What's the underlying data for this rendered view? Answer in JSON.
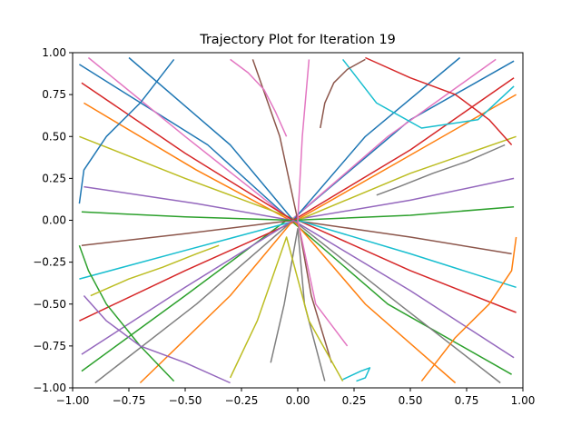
{
  "chart_data": {
    "type": "line",
    "title": "Trajectory Plot for Iteration 19",
    "xlabel": "",
    "ylabel": "",
    "xlim": [
      -1.0,
      1.0
    ],
    "ylim": [
      -1.0,
      1.0
    ],
    "x_ticks": [
      -1.0,
      -0.75,
      -0.5,
      -0.25,
      0.0,
      0.25,
      0.5,
      0.75,
      1.0
    ],
    "x_tick_labels": [
      "−1.00",
      "−0.75",
      "−0.50",
      "−0.25",
      "0.00",
      "0.25",
      "0.50",
      "0.75",
      "1.00"
    ],
    "y_ticks": [
      1.0,
      0.75,
      0.5,
      0.25,
      0.0,
      -0.25,
      -0.5,
      -0.75,
      -1.0
    ],
    "y_tick_labels": [
      "1.00",
      "0.75",
      "0.50",
      "0.25",
      "0.00",
      "−0.25",
      "−0.50",
      "−0.75",
      "−1.00"
    ],
    "grid": false,
    "legend": "none",
    "colors": [
      "#1f77b4",
      "#ff7f0e",
      "#2ca02c",
      "#d62728",
      "#9467bd",
      "#8c564b",
      "#e377c2",
      "#7f7f7f",
      "#bcbd22",
      "#17becf"
    ],
    "series": [
      {
        "x": [
          -0.97,
          -0.4,
          -0.03,
          0.5,
          0.96
        ],
        "y": [
          0.93,
          0.45,
          0.0,
          0.6,
          0.95
        ]
      },
      {
        "x": [
          -0.95,
          -0.45,
          -0.02,
          0.45,
          0.97
        ],
        "y": [
          0.7,
          0.3,
          -0.01,
          0.35,
          0.75
        ]
      },
      {
        "x": [
          -0.96,
          -0.5,
          -0.04,
          0.4,
          0.95
        ],
        "y": [
          -0.9,
          -0.45,
          0.01,
          -0.5,
          -0.92
        ]
      },
      {
        "x": [
          -0.97,
          -0.5,
          0.0,
          0.5,
          0.97
        ],
        "y": [
          -0.6,
          -0.3,
          0.0,
          -0.3,
          -0.55
        ]
      },
      {
        "x": [
          -0.95,
          -0.45,
          -0.03,
          0.5,
          0.96
        ],
        "y": [
          0.2,
          0.1,
          0.0,
          0.12,
          0.25
        ]
      },
      {
        "x": [
          -0.96,
          -0.5,
          -0.02,
          0.5,
          0.95
        ],
        "y": [
          -0.15,
          -0.08,
          0.0,
          -0.1,
          -0.2
        ]
      },
      {
        "x": [
          -0.93,
          -0.5,
          -0.03,
          0.4,
          0.88
        ],
        "y": [
          0.97,
          0.5,
          0.0,
          0.5,
          0.96
        ]
      },
      {
        "x": [
          -0.9,
          -0.45,
          -0.02,
          0.45,
          0.9
        ],
        "y": [
          -0.97,
          -0.5,
          0.0,
          -0.5,
          -0.97
        ]
      },
      {
        "x": [
          -0.97,
          -0.5,
          0.0,
          0.5,
          0.97
        ],
        "y": [
          0.5,
          0.25,
          0.0,
          0.28,
          0.5
        ]
      },
      {
        "x": [
          -0.97,
          -0.5,
          0.0,
          0.5,
          0.97
        ],
        "y": [
          -0.35,
          -0.18,
          0.0,
          -0.2,
          -0.4
        ]
      },
      {
        "x": [
          -0.75,
          -0.3,
          -0.02,
          0.3,
          0.72
        ],
        "y": [
          0.97,
          0.45,
          0.0,
          0.5,
          0.97
        ]
      },
      {
        "x": [
          -0.7,
          -0.3,
          -0.02,
          0.3,
          0.7
        ],
        "y": [
          -0.97,
          -0.45,
          0.0,
          -0.5,
          -0.97
        ]
      },
      {
        "x": [
          -0.96,
          -0.5,
          -0.02,
          0.5,
          0.96
        ],
        "y": [
          0.05,
          0.02,
          0.0,
          0.03,
          0.08
        ]
      },
      {
        "x": [
          -0.96,
          -0.5,
          -0.02,
          0.5,
          0.96
        ],
        "y": [
          0.82,
          0.4,
          0.0,
          0.42,
          0.85
        ]
      },
      {
        "x": [
          -0.96,
          -0.5,
          -0.02,
          0.5,
          0.96
        ],
        "y": [
          -0.8,
          -0.4,
          0.0,
          -0.42,
          -0.82
        ]
      },
      {
        "x": [
          -0.2,
          -0.08,
          0.0,
          0.06,
          0.15
        ],
        "y": [
          0.96,
          0.5,
          0.0,
          -0.45,
          -0.85
        ]
      },
      {
        "x": [
          0.05,
          0.02,
          0.0,
          0.08,
          0.22
        ],
        "y": [
          0.96,
          0.5,
          0.0,
          -0.5,
          -0.75
        ]
      },
      {
        "x": [
          -0.12,
          -0.06,
          0.0,
          0.03,
          0.12
        ],
        "y": [
          -0.85,
          -0.5,
          -0.05,
          -0.5,
          -0.96
        ]
      },
      {
        "x": [
          -0.3,
          -0.18,
          -0.05,
          0.05,
          0.2
        ],
        "y": [
          -0.94,
          -0.6,
          -0.1,
          -0.6,
          -0.96
        ]
      },
      {
        "x": [
          0.2,
          0.35,
          0.55,
          0.8,
          0.96
        ],
        "y": [
          0.96,
          0.7,
          0.55,
          0.6,
          0.8
        ]
      },
      {
        "x": [
          -0.55,
          -0.7,
          -0.85,
          -0.95,
          -0.97
        ],
        "y": [
          0.96,
          0.7,
          0.5,
          0.3,
          0.1
        ]
      },
      {
        "x": [
          0.55,
          0.7,
          0.85,
          0.95,
          0.97
        ],
        "y": [
          -0.96,
          -0.7,
          -0.5,
          -0.3,
          -0.1
        ]
      },
      {
        "x": [
          -0.55,
          -0.7,
          -0.85,
          -0.93,
          -0.97
        ],
        "y": [
          -0.96,
          -0.75,
          -0.5,
          -0.3,
          -0.15
        ]
      },
      {
        "x": [
          0.3,
          0.5,
          0.7,
          0.85,
          0.95
        ],
        "y": [
          0.97,
          0.85,
          0.75,
          0.6,
          0.45
        ]
      },
      {
        "x": [
          -0.3,
          -0.5,
          -0.7,
          -0.85,
          -0.95
        ],
        "y": [
          -0.97,
          -0.85,
          -0.75,
          -0.6,
          -0.45
        ]
      },
      {
        "x": [
          0.1,
          0.12,
          0.16,
          0.22,
          0.3
        ],
        "y": [
          0.55,
          0.7,
          0.82,
          0.9,
          0.96
        ]
      },
      {
        "x": [
          -0.05,
          -0.1,
          -0.15,
          -0.22,
          -0.3
        ],
        "y": [
          0.5,
          0.65,
          0.78,
          0.88,
          0.96
        ]
      },
      {
        "x": [
          0.35,
          0.45,
          0.6,
          0.75,
          0.92
        ],
        "y": [
          0.15,
          0.2,
          0.28,
          0.35,
          0.45
        ]
      },
      {
        "x": [
          -0.35,
          -0.45,
          -0.6,
          -0.75,
          -0.92
        ],
        "y": [
          -0.15,
          -0.2,
          -0.28,
          -0.35,
          -0.45
        ]
      },
      {
        "x": [
          0.2,
          0.28,
          0.32,
          0.3,
          0.26
        ],
        "y": [
          -0.95,
          -0.9,
          -0.88,
          -0.94,
          -0.96
        ]
      }
    ]
  }
}
